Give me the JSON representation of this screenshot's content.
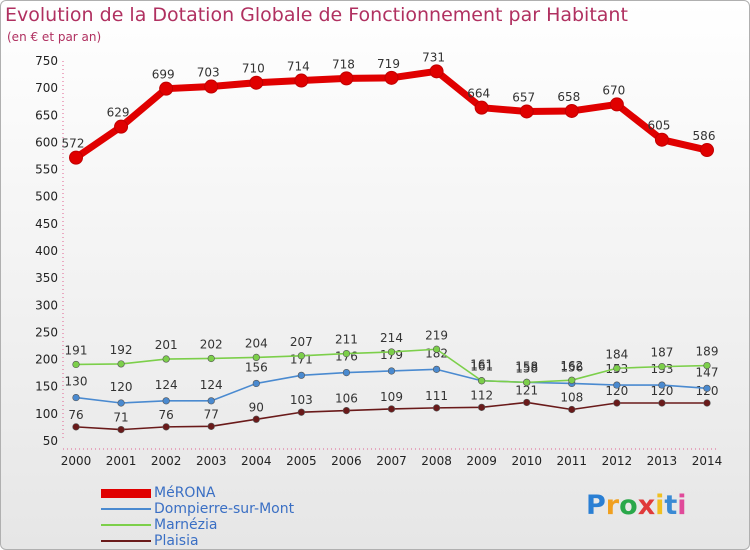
{
  "header": {
    "title": "Evolution de la Dotation Globale de Fonctionnement par Habitant",
    "subtitle": "(en € et par an)"
  },
  "logo": {
    "text": "Proxiti",
    "colors": [
      "#2a7fd4",
      "#f0a020",
      "#2aa84a",
      "#e03a3a",
      "#f0c020",
      "#3a8ad4",
      "#e04a9a"
    ]
  },
  "chart_data": {
    "type": "line",
    "title": "Evolution de la Dotation Globale de Fonctionnement par Habitant",
    "subtitle": "(en € et par an)",
    "x": [
      2000,
      2001,
      2002,
      2003,
      2004,
      2005,
      2006,
      2007,
      2008,
      2009,
      2010,
      2011,
      2012,
      2013,
      2014
    ],
    "ylim": [
      50,
      750
    ],
    "yticks": [
      50,
      100,
      150,
      200,
      250,
      300,
      350,
      400,
      450,
      500,
      550,
      600,
      650,
      700,
      750
    ],
    "grid": false,
    "legend_position": "bottom-left",
    "series": [
      {
        "name": "MéRONA",
        "color": "#e00000",
        "values": [
          572,
          629,
          699,
          703,
          710,
          714,
          718,
          719,
          731,
          664,
          657,
          658,
          670,
          605,
          586
        ]
      },
      {
        "name": "Dompierre-sur-Mont",
        "color": "#4a8ad0",
        "values": [
          130,
          120,
          124,
          124,
          156,
          171,
          176,
          179,
          182,
          161,
          158,
          156,
          153,
          153,
          147
        ]
      },
      {
        "name": "Marnézia",
        "color": "#7ccf4a",
        "values": [
          191,
          192,
          201,
          202,
          204,
          207,
          211,
          214,
          219,
          161,
          158,
          162,
          184,
          187,
          189
        ]
      },
      {
        "name": "Plaisia",
        "color": "#6a1a1a",
        "values": [
          76,
          71,
          76,
          77,
          90,
          103,
          106,
          109,
          111,
          112,
          121,
          108,
          120,
          120,
          120
        ]
      }
    ]
  }
}
